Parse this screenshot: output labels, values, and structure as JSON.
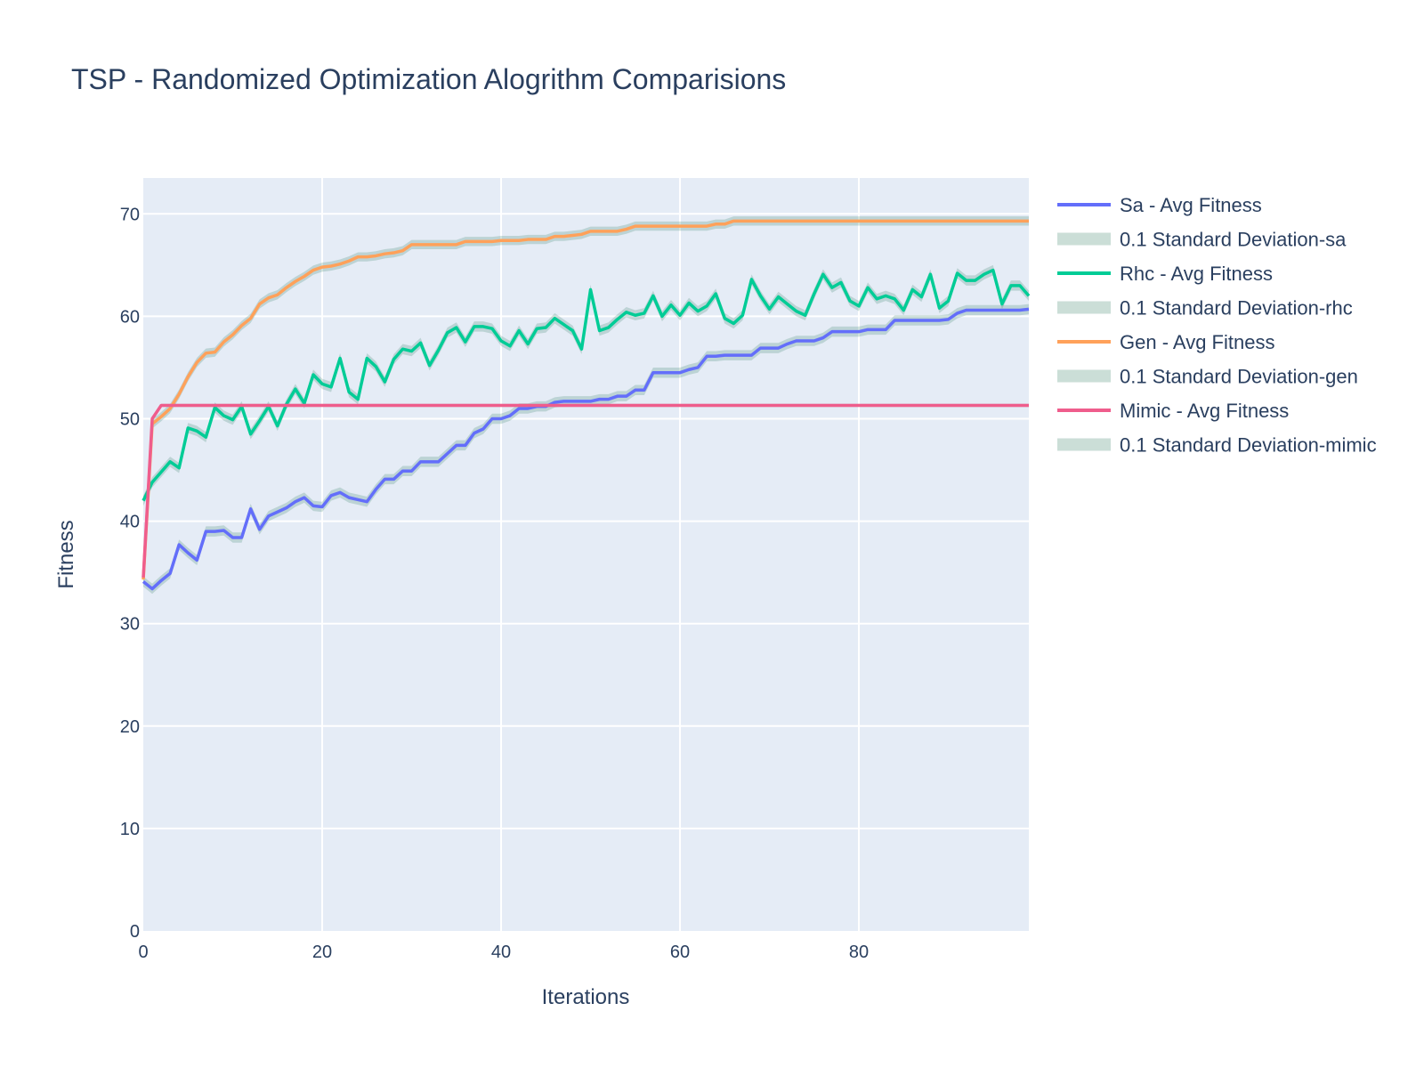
{
  "chart_data": {
    "type": "line",
    "title": "TSP - Randomized Optimization Alogrithm Comparisions",
    "xlabel": "Iterations",
    "ylabel": "Fitness",
    "xlim": [
      0,
      99
    ],
    "ylim": [
      0,
      73.5
    ],
    "xticks": [
      0,
      20,
      40,
      60,
      80
    ],
    "yticks": [
      0,
      10,
      20,
      30,
      40,
      50,
      60,
      70
    ],
    "grid": true,
    "legend_position": "right",
    "band_color": "#2f7d60",
    "x": [
      0,
      1,
      2,
      3,
      4,
      5,
      6,
      7,
      8,
      9,
      10,
      11,
      12,
      13,
      14,
      15,
      16,
      17,
      18,
      19,
      20,
      21,
      22,
      23,
      24,
      25,
      26,
      27,
      28,
      29,
      30,
      31,
      32,
      33,
      34,
      35,
      36,
      37,
      38,
      39,
      40,
      41,
      42,
      43,
      44,
      45,
      46,
      47,
      48,
      49,
      50,
      51,
      52,
      53,
      54,
      55,
      56,
      57,
      58,
      59,
      60,
      61,
      62,
      63,
      64,
      65,
      66,
      67,
      68,
      69,
      70,
      71,
      72,
      73,
      74,
      75,
      76,
      77,
      78,
      79,
      80,
      81,
      82,
      83,
      84,
      85,
      86,
      87,
      88,
      89,
      90,
      91,
      92,
      93,
      94,
      95,
      96,
      97,
      98,
      99
    ],
    "series": [
      {
        "name": "Sa - Avg Fitness",
        "band_name": "0.1 Standard Deviation-sa",
        "color": "#636efa",
        "band_width": 0.5,
        "values": [
          34.1,
          33.4,
          34.2,
          34.9,
          37.7,
          36.9,
          36.2,
          39.0,
          39.0,
          39.1,
          38.4,
          38.4,
          41.2,
          39.2,
          40.5,
          40.9,
          41.3,
          41.9,
          42.3,
          41.5,
          41.4,
          42.5,
          42.8,
          42.3,
          42.1,
          41.9,
          43.1,
          44.1,
          44.1,
          44.9,
          44.9,
          45.8,
          45.8,
          45.8,
          46.6,
          47.4,
          47.4,
          48.6,
          49.0,
          50.0,
          50.0,
          50.3,
          51.0,
          51.0,
          51.2,
          51.2,
          51.6,
          51.7,
          51.7,
          51.7,
          51.7,
          51.9,
          51.9,
          52.2,
          52.2,
          52.8,
          52.8,
          54.5,
          54.5,
          54.5,
          54.5,
          54.8,
          55.0,
          56.1,
          56.1,
          56.2,
          56.2,
          56.2,
          56.2,
          56.9,
          56.9,
          56.9,
          57.3,
          57.6,
          57.6,
          57.6,
          57.9,
          58.5,
          58.5,
          58.5,
          58.5,
          58.7,
          58.7,
          58.7,
          59.6,
          59.6,
          59.6,
          59.6,
          59.6,
          59.6,
          59.7,
          60.3,
          60.6,
          60.6,
          60.6,
          60.6,
          60.6,
          60.6,
          60.6,
          60.7
        ]
      },
      {
        "name": "Rhc - Avg Fitness",
        "band_name": "0.1 Standard Deviation-rhc",
        "color": "#00cc96",
        "band_width": 0.5,
        "values": [
          42.0,
          43.8,
          44.8,
          45.8,
          45.2,
          49.1,
          48.8,
          48.2,
          51.1,
          50.3,
          49.9,
          51.2,
          48.5,
          49.8,
          51.2,
          49.3,
          51.4,
          52.9,
          51.5,
          54.3,
          53.4,
          53.1,
          55.9,
          52.6,
          51.9,
          55.9,
          55.1,
          53.6,
          55.8,
          56.8,
          56.6,
          57.4,
          55.2,
          56.7,
          58.4,
          58.9,
          57.5,
          59.0,
          59.0,
          58.8,
          57.6,
          57.1,
          58.6,
          57.3,
          58.8,
          58.9,
          59.8,
          59.2,
          58.6,
          56.8,
          62.6,
          58.6,
          58.9,
          59.7,
          60.4,
          60.1,
          60.3,
          62.0,
          60.0,
          61.1,
          60.1,
          61.3,
          60.5,
          61.0,
          62.2,
          59.8,
          59.3,
          60.1,
          63.6,
          62.0,
          60.7,
          61.9,
          61.2,
          60.5,
          60.1,
          62.2,
          64.1,
          62.8,
          63.3,
          61.5,
          61.0,
          62.8,
          61.7,
          62.0,
          61.7,
          60.6,
          62.6,
          61.9,
          64.1,
          60.8,
          61.5,
          64.2,
          63.5,
          63.5,
          64.1,
          64.5,
          61.2,
          63.0,
          63.0,
          62.0
        ]
      },
      {
        "name": "Gen - Avg Fitness",
        "band_name": "0.1 Standard Deviation-gen",
        "color": "#ffa15a",
        "band_width": 0.45,
        "values": [
          34.3,
          49.5,
          50.2,
          51.0,
          52.4,
          54.1,
          55.5,
          56.4,
          56.5,
          57.5,
          58.2,
          59.1,
          59.8,
          61.2,
          61.8,
          62.1,
          62.8,
          63.4,
          63.9,
          64.5,
          64.8,
          64.9,
          65.1,
          65.4,
          65.8,
          65.8,
          65.9,
          66.1,
          66.2,
          66.4,
          67.0,
          67.0,
          67.0,
          67.0,
          67.0,
          67.0,
          67.3,
          67.3,
          67.3,
          67.3,
          67.4,
          67.4,
          67.4,
          67.5,
          67.5,
          67.5,
          67.8,
          67.8,
          67.9,
          68.0,
          68.3,
          68.3,
          68.3,
          68.3,
          68.5,
          68.8,
          68.8,
          68.8,
          68.8,
          68.8,
          68.8,
          68.8,
          68.8,
          68.8,
          69.0,
          69.0,
          69.3,
          69.3,
          69.3,
          69.3,
          69.3,
          69.3,
          69.3,
          69.3,
          69.3,
          69.3,
          69.3,
          69.3,
          69.3,
          69.3,
          69.3,
          69.3,
          69.3,
          69.3,
          69.3,
          69.3,
          69.3,
          69.3,
          69.3,
          69.3,
          69.3,
          69.3,
          69.3,
          69.3,
          69.3,
          69.3,
          69.3,
          69.3,
          69.3,
          69.3
        ]
      },
      {
        "name": "Mimic - Avg Fitness",
        "band_name": "0.1 Standard Deviation-mimic",
        "color": "#ef5d8c",
        "band_width": 0.15,
        "values": [
          34.5,
          50.0,
          51.3,
          51.3,
          51.3,
          51.3,
          51.3,
          51.3,
          51.3,
          51.3,
          51.3,
          51.3,
          51.3,
          51.3,
          51.3,
          51.3,
          51.3,
          51.3,
          51.3,
          51.3,
          51.3,
          51.3,
          51.3,
          51.3,
          51.3,
          51.3,
          51.3,
          51.3,
          51.3,
          51.3,
          51.3,
          51.3,
          51.3,
          51.3,
          51.3,
          51.3,
          51.3,
          51.3,
          51.3,
          51.3,
          51.3,
          51.3,
          51.3,
          51.3,
          51.3,
          51.3,
          51.3,
          51.3,
          51.3,
          51.3,
          51.3,
          51.3,
          51.3,
          51.3,
          51.3,
          51.3,
          51.3,
          51.3,
          51.3,
          51.3,
          51.3,
          51.3,
          51.3,
          51.3,
          51.3,
          51.3,
          51.3,
          51.3,
          51.3,
          51.3,
          51.3,
          51.3,
          51.3,
          51.3,
          51.3,
          51.3,
          51.3,
          51.3,
          51.3,
          51.3,
          51.3,
          51.3,
          51.3,
          51.3,
          51.3,
          51.3,
          51.3,
          51.3,
          51.3,
          51.3,
          51.3,
          51.3,
          51.3,
          51.3,
          51.3,
          51.3,
          51.3,
          51.3,
          51.3,
          51.3
        ]
      }
    ]
  }
}
